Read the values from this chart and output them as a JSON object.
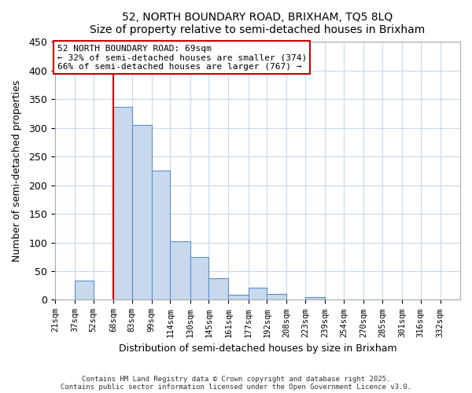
{
  "title_line1": "52, NORTH BOUNDARY ROAD, BRIXHAM, TQ5 8LQ",
  "title_line2": "Size of property relative to semi-detached houses in Brixham",
  "xlabel": "Distribution of semi-detached houses by size in Brixham",
  "ylabel": "Number of semi-detached properties",
  "bin_labels": [
    "21sqm",
    "37sqm",
    "52sqm",
    "68sqm",
    "83sqm",
    "99sqm",
    "114sqm",
    "130sqm",
    "145sqm",
    "161sqm",
    "177sqm",
    "192sqm",
    "208sqm",
    "223sqm",
    "239sqm",
    "254sqm",
    "270sqm",
    "285sqm",
    "301sqm",
    "316sqm",
    "332sqm"
  ],
  "bin_edges": [
    21,
    37,
    52,
    68,
    83,
    99,
    114,
    130,
    145,
    161,
    177,
    192,
    208,
    223,
    239,
    254,
    270,
    285,
    301,
    316,
    332
  ],
  "bar_heights": [
    0,
    34,
    0,
    336,
    305,
    225,
    102,
    75,
    37,
    9,
    21,
    10,
    0,
    5,
    0,
    0,
    0,
    0,
    0,
    0
  ],
  "bar_color": "#c8d9ed",
  "bar_edge_color": "#5b8fc9",
  "vline_x": 68,
  "vline_color": "#cc0000",
  "ylim": [
    0,
    450
  ],
  "yticks": [
    0,
    50,
    100,
    150,
    200,
    250,
    300,
    350,
    400,
    450
  ],
  "annotation_title": "52 NORTH BOUNDARY ROAD: 69sqm",
  "annotation_line2": "← 32% of semi-detached houses are smaller (374)",
  "annotation_line3": "66% of semi-detached houses are larger (767) →",
  "annotation_box_color": "#ffffff",
  "annotation_box_edge_color": "#cc0000",
  "footer_line1": "Contains HM Land Registry data © Crown copyright and database right 2025.",
  "footer_line2": "Contains public sector information licensed under the Open Government Licence v3.0.",
  "background_color": "#ffffff",
  "grid_color": "#c8d9ed"
}
